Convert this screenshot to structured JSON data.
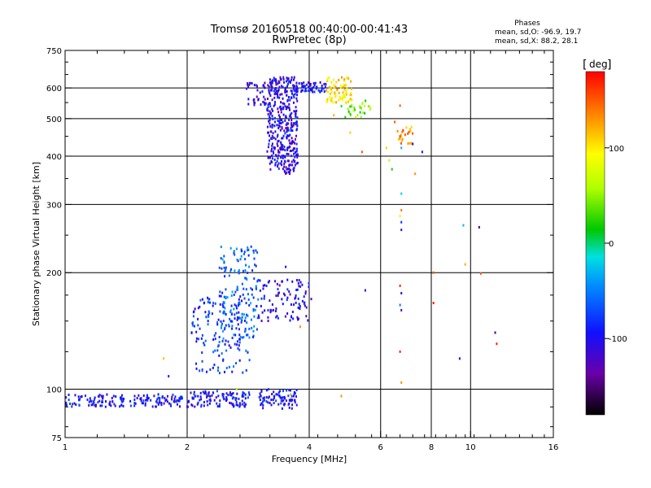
{
  "chart_data": {
    "type": "scatter",
    "title": "Tromsø 20160518 00:40:00-00:41:43",
    "subtitle": "RwPretec (8p)",
    "phase_header": "Phases",
    "phase_stats": [
      "mean, sd,O: -96.9, 19.7",
      "mean, sd,X: 88.2, 28.1"
    ],
    "xlabel": "Frequency [MHz]",
    "ylabel": "Stationary phase Virtual Height [km]",
    "x_scale": "log",
    "y_scale": "log",
    "xlim": [
      1,
      16
    ],
    "ylim": [
      75,
      750
    ],
    "x_ticks": [
      1,
      2,
      4,
      6,
      8,
      10,
      16
    ],
    "x_tick_labels": [
      "1",
      "2",
      "4",
      "6",
      "8",
      "10",
      "16"
    ],
    "y_ticks": [
      75,
      100,
      200,
      300,
      400,
      500,
      600,
      750
    ],
    "y_tick_labels": [
      "75",
      "100",
      "200",
      "300",
      "400",
      "500",
      "600",
      "750"
    ],
    "grid": true,
    "colorbar": {
      "label": "deg",
      "range": [
        -180,
        180
      ],
      "ticks": [
        -100,
        0,
        100
      ],
      "tick_labels": [
        "-100",
        "0",
        "100"
      ]
    },
    "clusters": [
      {
        "fmin": 1.0,
        "fmax": 1.95,
        "hmin": 90,
        "hmax": 97,
        "phase": -95,
        "count": 160
      },
      {
        "fmin": 2.0,
        "fmax": 2.85,
        "hmin": 90,
        "hmax": 99,
        "phase": -95,
        "count": 110
      },
      {
        "fmin": 3.0,
        "fmax": 3.75,
        "hmin": 89,
        "hmax": 100,
        "phase": -95,
        "count": 80
      },
      {
        "fmin": 2.05,
        "fmax": 2.85,
        "hmin": 110,
        "hmax": 175,
        "phase": -80,
        "count": 140
      },
      {
        "fmin": 2.4,
        "fmax": 3.0,
        "hmin": 135,
        "hmax": 235,
        "phase": -60,
        "count": 160
      },
      {
        "fmin": 3.0,
        "fmax": 4.05,
        "hmin": 150,
        "hmax": 192,
        "phase": -105,
        "count": 95
      },
      {
        "fmin": 2.8,
        "fmax": 3.2,
        "hmin": 540,
        "hmax": 620,
        "phase": -110,
        "count": 40
      },
      {
        "fmin": 3.15,
        "fmax": 3.75,
        "hmin": 360,
        "hmax": 640,
        "phase": -105,
        "count": 400
      },
      {
        "fmin": 3.7,
        "fmax": 4.4,
        "hmin": 585,
        "hmax": 620,
        "phase": -100,
        "count": 55
      },
      {
        "fmin": 4.4,
        "fmax": 5.1,
        "hmin": 550,
        "hmax": 640,
        "phase": 105,
        "count": 80
      },
      {
        "fmin": 4.8,
        "fmax": 5.7,
        "hmin": 500,
        "hmax": 560,
        "phase": 40,
        "count": 30
      },
      {
        "fmin": 6.6,
        "fmax": 7.2,
        "hmin": 430,
        "hmax": 480,
        "phase": 130,
        "count": 25
      }
    ],
    "scattered_points": [
      {
        "f": 1.75,
        "h": 120,
        "phase": 115
      },
      {
        "f": 1.8,
        "h": 108,
        "phase": -90
      },
      {
        "f": 2.65,
        "h": 100,
        "phase": 60
      },
      {
        "f": 3.45,
        "h": 99,
        "phase": -70
      },
      {
        "f": 3.6,
        "h": 97,
        "phase": 120
      },
      {
        "f": 3.5,
        "h": 207,
        "phase": -100
      },
      {
        "f": 3.8,
        "h": 145,
        "phase": 130
      },
      {
        "f": 4.6,
        "h": 510,
        "phase": 120
      },
      {
        "f": 4.8,
        "h": 96,
        "phase": 130
      },
      {
        "f": 5.05,
        "h": 460,
        "phase": 110
      },
      {
        "f": 5.4,
        "h": 410,
        "phase": 150
      },
      {
        "f": 5.5,
        "h": 180,
        "phase": -110
      },
      {
        "f": 6.2,
        "h": 420,
        "phase": 110
      },
      {
        "f": 6.3,
        "h": 390,
        "phase": 60
      },
      {
        "f": 6.4,
        "h": 370,
        "phase": 20
      },
      {
        "f": 6.5,
        "h": 490,
        "phase": 150
      },
      {
        "f": 6.7,
        "h": 540,
        "phase": 150
      },
      {
        "f": 6.7,
        "h": 450,
        "phase": 160
      },
      {
        "f": 6.75,
        "h": 420,
        "phase": -30
      },
      {
        "f": 6.75,
        "h": 320,
        "phase": -20
      },
      {
        "f": 6.75,
        "h": 290,
        "phase": 140
      },
      {
        "f": 6.7,
        "h": 280,
        "phase": 100
      },
      {
        "f": 6.75,
        "h": 270,
        "phase": -80
      },
      {
        "f": 6.75,
        "h": 258,
        "phase": -120
      },
      {
        "f": 6.7,
        "h": 185,
        "phase": 170
      },
      {
        "f": 6.75,
        "h": 177,
        "phase": -100
      },
      {
        "f": 6.7,
        "h": 165,
        "phase": -50
      },
      {
        "f": 6.75,
        "h": 160,
        "phase": -140
      },
      {
        "f": 6.7,
        "h": 125,
        "phase": 170
      },
      {
        "f": 6.75,
        "h": 104,
        "phase": 130
      },
      {
        "f": 7.3,
        "h": 360,
        "phase": 130
      },
      {
        "f": 7.2,
        "h": 430,
        "phase": -110
      },
      {
        "f": 7.6,
        "h": 410,
        "phase": -110
      },
      {
        "f": 8.1,
        "h": 200,
        "phase": 150
      },
      {
        "f": 8.1,
        "h": 167,
        "phase": 170
      },
      {
        "f": 9.4,
        "h": 120,
        "phase": -110
      },
      {
        "f": 9.6,
        "h": 265,
        "phase": -30
      },
      {
        "f": 9.7,
        "h": 210,
        "phase": 120
      },
      {
        "f": 10.5,
        "h": 262,
        "phase": -150
      },
      {
        "f": 10.6,
        "h": 199,
        "phase": 150
      },
      {
        "f": 11.5,
        "h": 140,
        "phase": -150
      },
      {
        "f": 11.6,
        "h": 131,
        "phase": 170
      }
    ]
  }
}
